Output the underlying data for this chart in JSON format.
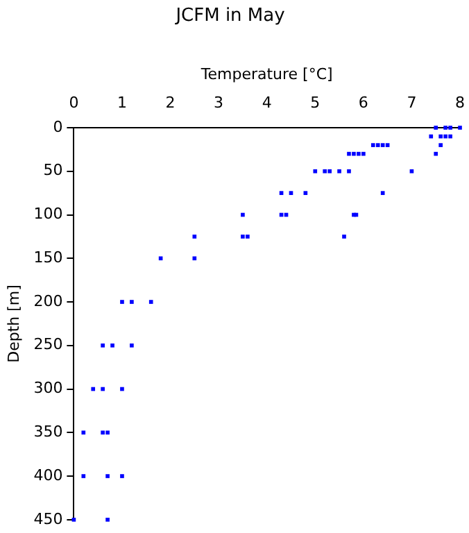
{
  "chart_data": {
    "type": "scatter",
    "title": "JCFM in May",
    "xlabel": "Temperature [°C]",
    "ylabel": "Depth [m]",
    "x": [
      7.5,
      7.7,
      7.8,
      8.0,
      7.4,
      7.6,
      7.7,
      7.8,
      7.6,
      6.2,
      6.3,
      6.4,
      6.5,
      7.5,
      5.7,
      5.8,
      5.9,
      6.0,
      5.0,
      5.2,
      5.3,
      5.5,
      5.7,
      7.0,
      4.3,
      4.5,
      4.8,
      6.4,
      3.5,
      4.3,
      4.4,
      5.8,
      5.85,
      2.5,
      3.5,
      3.6,
      5.6,
      1.8,
      2.5,
      1.0,
      1.2,
      1.6,
      0.6,
      0.8,
      1.2,
      0.4,
      0.6,
      1.0,
      0.2,
      0.6,
      0.7,
      0.2,
      0.7,
      1.0,
      0,
      0.7
    ],
    "values": [
      0,
      0,
      0,
      0,
      10,
      10,
      10,
      10,
      20,
      20,
      20,
      20,
      20,
      30,
      30,
      30,
      30,
      30,
      50,
      50,
      50,
      50,
      50,
      50,
      75,
      75,
      75,
      75,
      100,
      100,
      100,
      100,
      100,
      125,
      125,
      125,
      125,
      150,
      150,
      200,
      200,
      200,
      250,
      250,
      250,
      300,
      300,
      300,
      350,
      350,
      350,
      400,
      400,
      400,
      450,
      450
    ],
    "color": "#0000ff",
    "marker": "square",
    "xlim": [
      0,
      8
    ],
    "xticks": [
      0,
      1,
      2,
      3,
      4,
      5,
      6,
      7,
      8
    ],
    "ylim": [
      450,
      0
    ],
    "yticks": [
      0,
      50,
      100,
      150,
      200,
      250,
      300,
      350,
      400,
      450
    ],
    "grid": false,
    "legend": false
  }
}
